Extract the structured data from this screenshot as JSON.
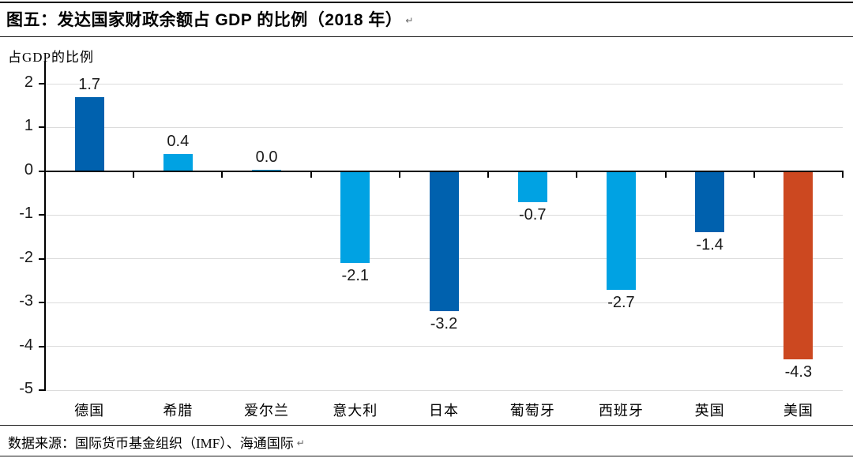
{
  "header": {
    "title": "图五：发达国家财政余额占 GDP 的比例（2018 年）",
    "return_mark": "↵"
  },
  "footer": {
    "source": "数据来源：国际货币基金组织（IMF）、海通国际",
    "return_mark": "↵"
  },
  "chart_data": {
    "type": "bar",
    "title": "图五：发达国家财政余额占 GDP 的比例（2018 年）",
    "ylabel": "占GDP的比例",
    "xlabel": "",
    "ylim": [
      -5,
      2
    ],
    "ytick_interval": 1,
    "yticks": [
      2,
      1,
      0,
      -1,
      -2,
      -3,
      -4,
      -5
    ],
    "grid": true,
    "legend": "none",
    "categories": [
      "德国",
      "希腊",
      "爱尔兰",
      "意大利",
      "日本",
      "葡萄牙",
      "西班牙",
      "英国",
      "美国"
    ],
    "values": [
      1.7,
      0.4,
      0.0,
      -2.1,
      -3.2,
      -0.7,
      -2.7,
      -1.4,
      -4.3
    ],
    "value_labels": [
      "1.7",
      "0.4",
      "0.0",
      "-2.1",
      "-3.2",
      "-0.7",
      "-2.7",
      "-1.4",
      "-4.3"
    ],
    "bar_colors": [
      "#0061AE",
      "#00A2E3",
      "#00A2E3",
      "#00A2E3",
      "#0061AE",
      "#00A2E3",
      "#00A2E3",
      "#0061AE",
      "#CC4820"
    ],
    "colors": {
      "dark_blue": "#0061AE",
      "light_blue": "#00A2E3",
      "red": "#CC4820",
      "gridline": "#DCDCDC",
      "axis": "#000000",
      "label_text": "#1A1A1A"
    }
  }
}
